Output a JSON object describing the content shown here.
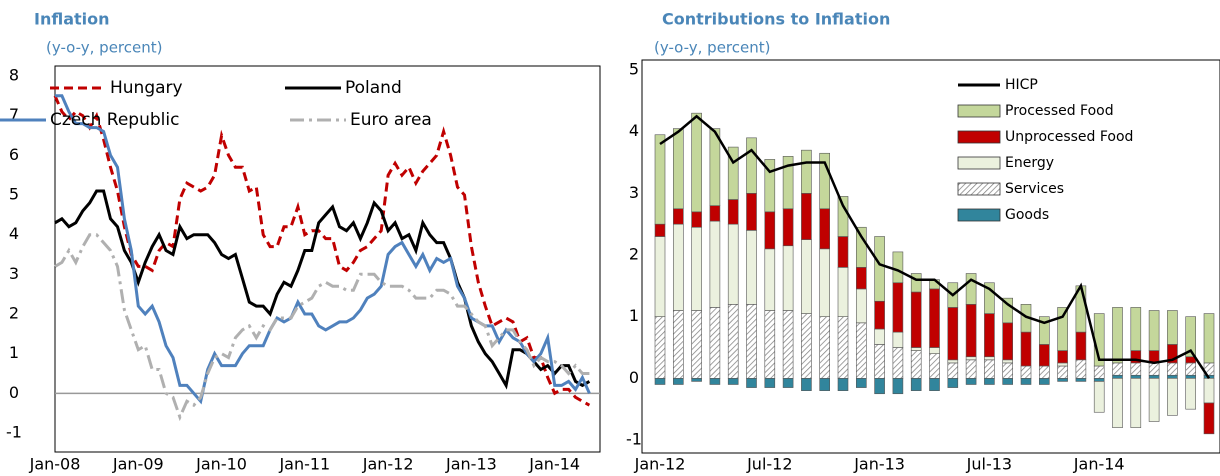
{
  "chart_data": [
    {
      "type": "line",
      "title": "Inflation",
      "subtitle": "(y-o-y, percent)",
      "categories": [
        "Jan-08",
        null,
        null,
        null,
        null,
        null,
        null,
        null,
        null,
        null,
        null,
        null,
        "Jan-09",
        null,
        null,
        null,
        null,
        null,
        null,
        null,
        null,
        null,
        null,
        null,
        "Jan-10",
        null,
        null,
        null,
        null,
        null,
        null,
        null,
        null,
        null,
        null,
        null,
        "Jan-11",
        null,
        null,
        null,
        null,
        null,
        null,
        null,
        null,
        null,
        null,
        null,
        "Jan-12",
        null,
        null,
        null,
        null,
        null,
        null,
        null,
        null,
        null,
        null,
        null,
        "Jan-13",
        null,
        null,
        null,
        null,
        null,
        null,
        null,
        null,
        null,
        null,
        null,
        "Jan-14",
        null,
        null,
        null,
        null,
        null
      ],
      "ylim": [
        -1,
        8
      ],
      "yticks": [
        -1,
        0,
        1,
        2,
        3,
        4,
        5,
        6,
        7,
        8
      ],
      "series": [
        {
          "name": "Hungary",
          "color": "#c00000",
          "style": "dashed",
          "values": [
            7.5,
            7.1,
            6.9,
            7.1,
            7.0,
            6.7,
            7.0,
            6.4,
            5.7,
            5.1,
            4.2,
            3.5,
            3.2,
            3.2,
            3.1,
            3.6,
            3.8,
            3.7,
            4.9,
            5.3,
            5.2,
            5.1,
            5.2,
            5.5,
            6.5,
            6.0,
            5.7,
            5.7,
            5.1,
            5.2,
            4.0,
            3.7,
            3.7,
            4.2,
            4.2,
            4.7,
            4.0,
            4.1,
            4.1,
            3.9,
            3.9,
            3.2,
            3.1,
            3.3,
            3.6,
            3.7,
            3.9,
            4.1,
            5.5,
            5.8,
            5.5,
            5.7,
            5.3,
            5.6,
            5.8,
            6.0,
            6.6,
            6.0,
            5.2,
            5.0,
            3.7,
            2.8,
            2.2,
            1.7,
            1.8,
            1.9,
            1.8,
            1.3,
            1.4,
            0.9,
            0.9,
            0.4,
            0.0,
            0.1,
            0.1,
            -0.1,
            -0.2,
            -0.3
          ]
        },
        {
          "name": "Poland",
          "color": "#000000",
          "style": "solid",
          "values": [
            4.3,
            4.4,
            4.2,
            4.3,
            4.6,
            4.8,
            5.1,
            5.1,
            4.4,
            4.2,
            3.6,
            3.3,
            2.8,
            3.3,
            3.7,
            4.0,
            3.6,
            3.5,
            4.2,
            3.9,
            4.0,
            4.0,
            4.0,
            3.8,
            3.5,
            3.4,
            3.5,
            2.9,
            2.3,
            2.2,
            2.2,
            2.0,
            2.5,
            2.8,
            2.7,
            3.1,
            3.6,
            3.6,
            4.3,
            4.5,
            4.7,
            4.2,
            4.1,
            4.3,
            3.9,
            4.3,
            4.8,
            4.6,
            4.1,
            4.3,
            3.9,
            4.0,
            3.6,
            4.3,
            4.0,
            3.8,
            3.8,
            3.4,
            2.8,
            2.4,
            1.7,
            1.3,
            1.0,
            0.8,
            0.5,
            0.2,
            1.1,
            1.1,
            1.0,
            0.8,
            0.6,
            0.7,
            0.5,
            0.7,
            0.7,
            0.3,
            0.2,
            0.3
          ]
        },
        {
          "name": "Czech Republic",
          "color": "#4f81bd",
          "style": "solid",
          "values": [
            7.5,
            7.5,
            7.1,
            6.8,
            6.8,
            6.7,
            6.7,
            6.6,
            6.0,
            5.7,
            4.4,
            3.6,
            2.2,
            2.0,
            2.2,
            1.8,
            1.2,
            0.9,
            0.2,
            0.2,
            0.0,
            -0.2,
            0.6,
            1.0,
            0.7,
            0.7,
            0.7,
            1.0,
            1.2,
            1.2,
            1.2,
            1.6,
            1.9,
            1.8,
            1.9,
            2.3,
            2.0,
            2.0,
            1.7,
            1.6,
            1.7,
            1.8,
            1.8,
            1.9,
            2.1,
            2.4,
            2.5,
            2.7,
            3.5,
            3.7,
            3.8,
            3.5,
            3.2,
            3.5,
            3.1,
            3.4,
            3.3,
            3.4,
            2.7,
            2.4,
            1.9,
            1.8,
            1.7,
            1.7,
            1.3,
            1.6,
            1.4,
            1.3,
            1.0,
            0.8,
            1.0,
            1.4,
            0.2,
            0.2,
            0.3,
            0.1,
            0.4,
            0.0
          ]
        },
        {
          "name": "Euro area",
          "color": "#b0b0b0",
          "style": "dashdot",
          "values": [
            3.2,
            3.3,
            3.6,
            3.3,
            3.7,
            4.0,
            4.0,
            3.8,
            3.6,
            3.2,
            2.1,
            1.6,
            1.1,
            1.2,
            0.6,
            0.6,
            0.0,
            -0.1,
            -0.6,
            -0.2,
            -0.3,
            -0.1,
            0.5,
            0.9,
            1.0,
            0.9,
            1.4,
            1.6,
            1.7,
            1.4,
            1.7,
            1.6,
            1.9,
            1.9,
            1.9,
            2.2,
            2.3,
            2.4,
            2.7,
            2.8,
            2.7,
            2.7,
            2.6,
            2.6,
            3.0,
            3.0,
            3.0,
            2.8,
            2.7,
            2.7,
            2.7,
            2.6,
            2.4,
            2.4,
            2.4,
            2.6,
            2.6,
            2.5,
            2.2,
            2.2,
            2.0,
            1.8,
            1.7,
            1.2,
            1.4,
            1.6,
            1.6,
            1.3,
            1.1,
            0.7,
            0.9,
            0.8,
            0.8,
            0.7,
            0.5,
            0.7,
            0.5,
            0.5
          ]
        }
      ]
    },
    {
      "type": "bar",
      "stacked": true,
      "title": "Contributions to Inflation",
      "subtitle": "(y-o-y, percent)",
      "categories": [
        "Jan-12",
        null,
        null,
        null,
        null,
        null,
        "Jul-12",
        null,
        null,
        null,
        null,
        null,
        "Jan-13",
        null,
        null,
        null,
        null,
        null,
        "Jul-13",
        null,
        null,
        null,
        null,
        null,
        "Jan-14",
        null,
        null,
        null,
        null,
        null,
        null
      ],
      "ylim": [
        -1,
        5
      ],
      "yticks": [
        -1,
        0,
        1,
        2,
        3,
        4,
        5
      ],
      "series": [
        {
          "name": "Goods",
          "color": "#31859c",
          "values": [
            -0.1,
            -0.1,
            -0.05,
            -0.1,
            -0.1,
            -0.15,
            -0.15,
            -0.15,
            -0.2,
            -0.2,
            -0.2,
            -0.15,
            -0.25,
            -0.25,
            -0.2,
            -0.2,
            -0.15,
            -0.1,
            -0.1,
            -0.1,
            -0.1,
            -0.1,
            -0.05,
            -0.05,
            -0.05,
            0.05,
            0.05,
            0.05,
            0.05,
            0.05,
            0.05
          ]
        },
        {
          "name": "Services",
          "color": "#808080",
          "pattern": "hatch",
          "values": [
            1.0,
            1.1,
            1.1,
            1.15,
            1.2,
            1.2,
            1.1,
            1.1,
            1.05,
            1.0,
            1.0,
            0.9,
            0.55,
            0.5,
            0.45,
            0.4,
            0.25,
            0.3,
            0.3,
            0.25,
            0.2,
            0.2,
            0.2,
            0.3,
            0.2,
            0.2,
            0.2,
            0.2,
            0.2,
            0.2,
            0.2
          ]
        },
        {
          "name": "Energy",
          "color": "#ebf1de",
          "values": [
            1.3,
            1.4,
            1.35,
            1.4,
            1.3,
            1.2,
            1.0,
            1.05,
            1.2,
            1.1,
            0.8,
            0.55,
            0.25,
            0.25,
            0.05,
            0.1,
            0.05,
            0.05,
            0.05,
            0.05,
            0.0,
            0.0,
            0.05,
            0.0,
            -0.5,
            -0.8,
            -0.8,
            -0.7,
            -0.6,
            -0.5,
            -0.4
          ]
        },
        {
          "name": "Unprocessed Food",
          "color": "#c00000",
          "values": [
            0.2,
            0.25,
            0.25,
            0.25,
            0.4,
            0.6,
            0.6,
            0.6,
            0.75,
            0.65,
            0.5,
            0.35,
            0.45,
            0.8,
            0.9,
            0.95,
            0.85,
            0.85,
            0.7,
            0.6,
            0.55,
            0.35,
            0.2,
            0.45,
            0.0,
            0.0,
            0.2,
            0.2,
            0.3,
            0.1,
            -0.5
          ]
        },
        {
          "name": "Processed Food",
          "color": "#c4d79b",
          "values": [
            1.45,
            1.3,
            1.6,
            1.25,
            0.85,
            0.9,
            0.85,
            0.85,
            0.7,
            0.9,
            0.65,
            0.65,
            1.05,
            0.5,
            0.3,
            0.15,
            0.4,
            0.5,
            0.5,
            0.4,
            0.45,
            0.45,
            0.7,
            0.75,
            0.85,
            0.9,
            0.7,
            0.65,
            0.55,
            0.65,
            0.8
          ]
        },
        {
          "name": "HICP",
          "color": "#000000",
          "type": "line",
          "values": [
            3.8,
            4.0,
            4.25,
            4.0,
            3.5,
            3.7,
            3.35,
            3.45,
            3.5,
            3.5,
            2.8,
            2.3,
            1.85,
            1.75,
            1.6,
            1.6,
            1.35,
            1.6,
            1.45,
            1.2,
            1.0,
            0.9,
            1.0,
            1.5,
            0.3,
            0.3,
            0.3,
            0.25,
            0.3,
            0.45,
            0.0
          ]
        }
      ]
    }
  ]
}
